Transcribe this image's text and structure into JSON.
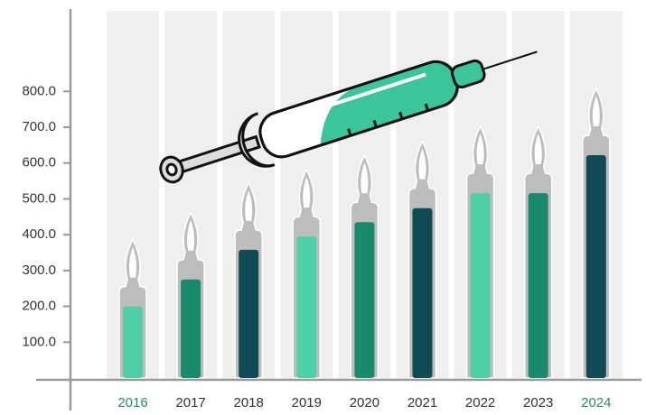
{
  "chart_data": {
    "type": "bar",
    "categories": [
      "2016",
      "2017",
      "2018",
      "2019",
      "2020",
      "2021",
      "2022",
      "2023",
      "2024"
    ],
    "values": [
      200,
      275,
      358,
      395,
      435,
      474,
      516,
      516,
      622
    ],
    "colors": [
      "#4fcfa8",
      "#1a8a6e",
      "#0f4a55",
      "#4fcfa8",
      "#1a8a6e",
      "#0f4a55",
      "#4fcfa8",
      "#1a8a6e",
      "#0f4a55"
    ],
    "category_label_colors": [
      "#2a8a6a",
      "#333333",
      "#333333",
      "#333333",
      "#333333",
      "#333333",
      "#333333",
      "#333333",
      "#2a8a6a"
    ],
    "ylim": [
      0,
      1030
    ],
    "yticks": [
      {
        "value": 100,
        "label": "100.0"
      },
      {
        "value": 200,
        "label": "200.0"
      },
      {
        "value": 300,
        "label": "300.0"
      },
      {
        "value": 400,
        "label": "400.0"
      },
      {
        "value": 500,
        "label": "500.0"
      },
      {
        "value": 600,
        "label": "600.0"
      },
      {
        "value": 700,
        "label": "700.0"
      },
      {
        "value": 800,
        "label": "800.0"
      }
    ]
  }
}
